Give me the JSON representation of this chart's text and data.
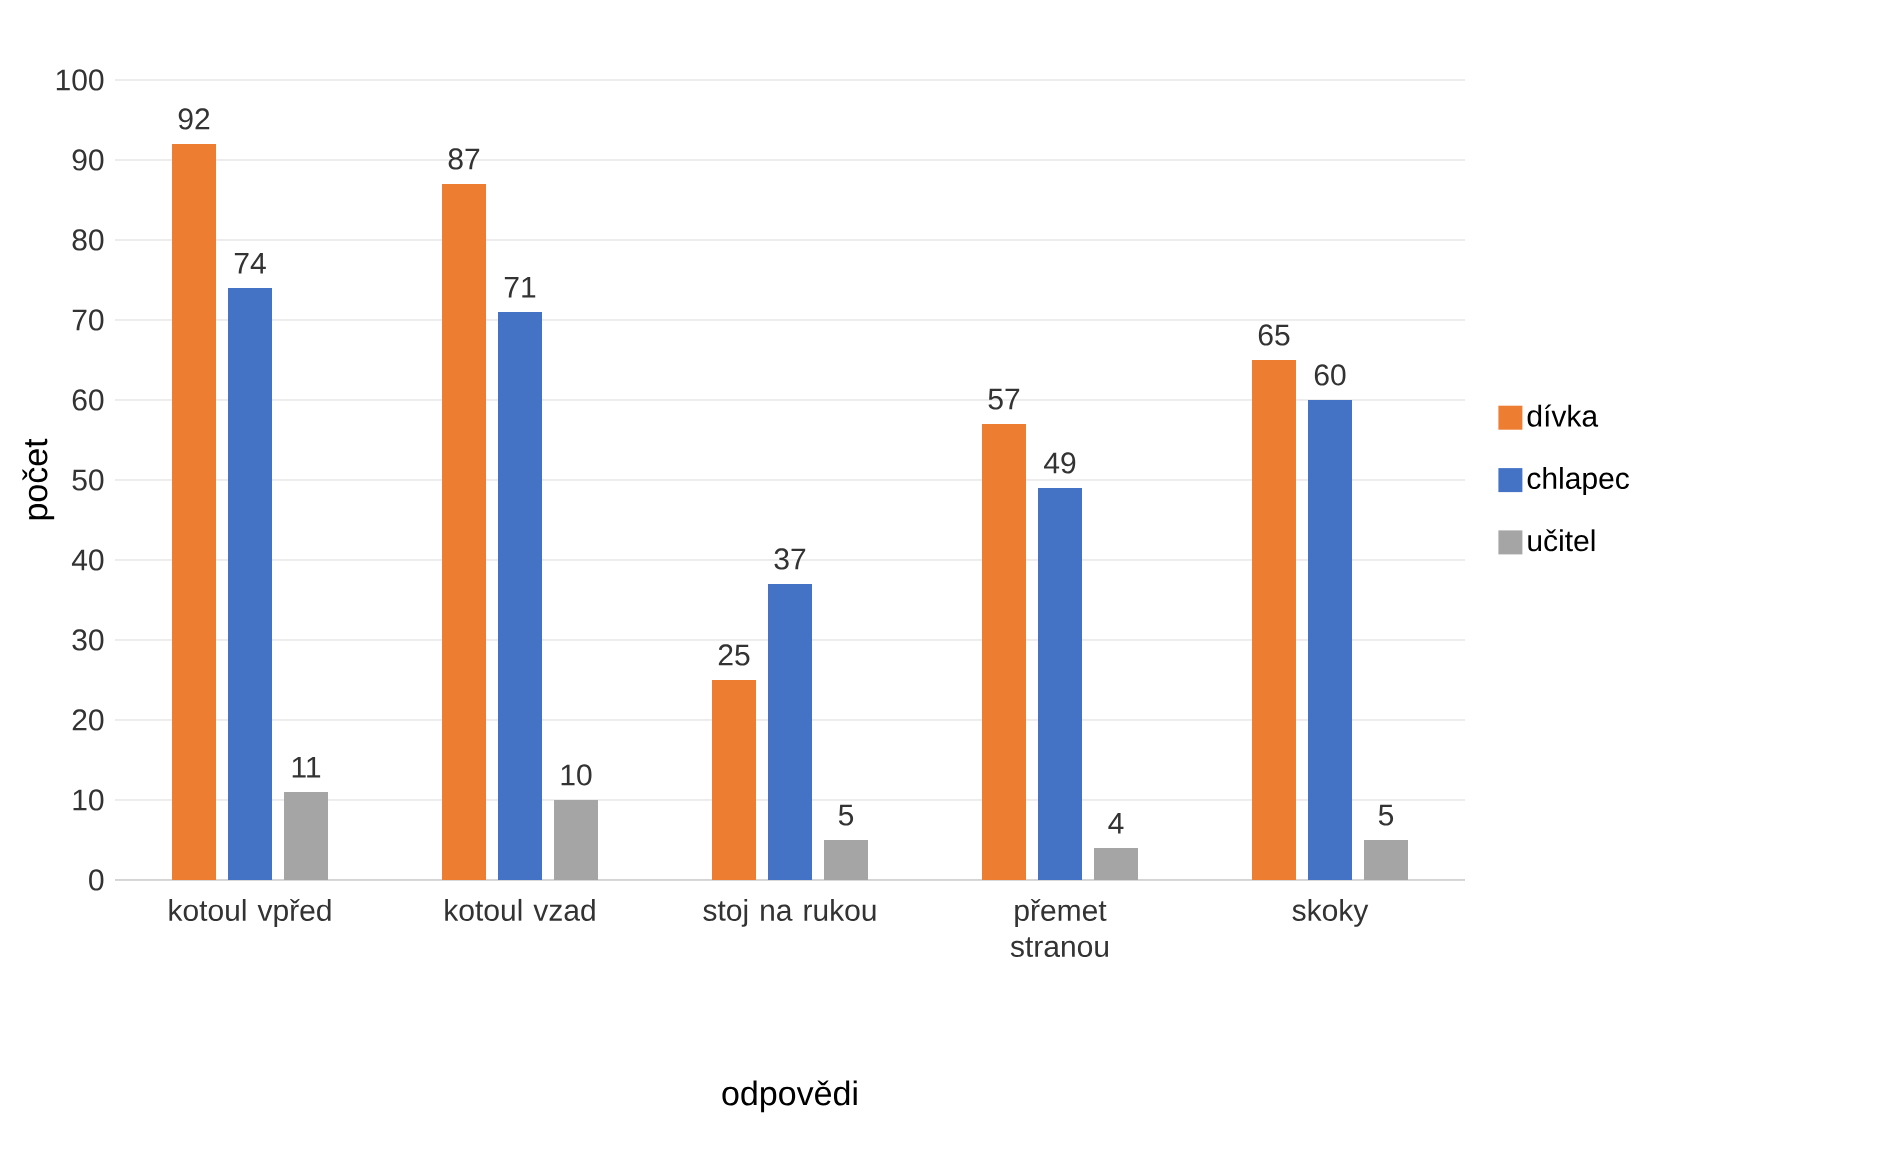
{
  "chart_data": {
    "type": "bar",
    "xlabel": "odpovědi",
    "ylabel": "počet",
    "categories": [
      "kotoul vpřed",
      "kotoul vzad",
      "stoj na rukou",
      "přemet stranou",
      "skoky"
    ],
    "series": [
      {
        "name": "dívka",
        "color": "#ed7d31",
        "values": [
          92,
          87,
          25,
          57,
          65
        ]
      },
      {
        "name": "chlapec",
        "color": "#4472c4",
        "values": [
          74,
          71,
          37,
          49,
          60
        ]
      },
      {
        "name": "učitel",
        "color": "#a5a5a5",
        "values": [
          11,
          10,
          5,
          4,
          5
        ]
      }
    ],
    "ylim": [
      0,
      100
    ],
    "yticks": [
      0,
      10,
      20,
      30,
      40,
      50,
      60,
      70,
      80,
      90,
      100
    ],
    "grid": "y",
    "legend": "right",
    "data_labels": true
  }
}
